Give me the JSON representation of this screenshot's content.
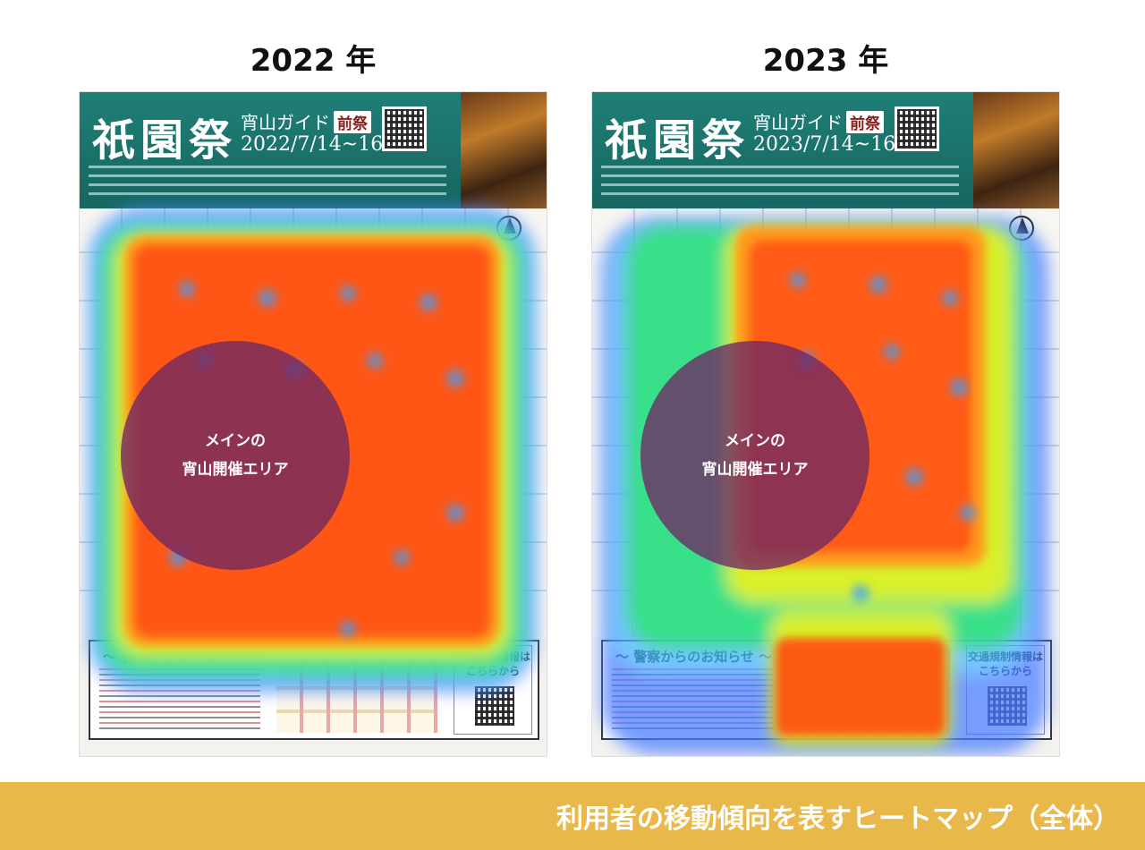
{
  "panels": [
    {
      "year_label": "2022 年",
      "header_title": "祇園祭",
      "header_sub": "宵山ガイド",
      "header_badge": "前祭",
      "header_date": "2022/7/14~16",
      "circle_line1": "メインの",
      "circle_line2": "宵山開催エリア",
      "notice_title": "～ 警察からのお知らせ ～",
      "traffic_title": "交通規制情報はこちらから"
    },
    {
      "year_label": "2023 年",
      "header_title": "祇園祭",
      "header_sub": "宵山ガイド",
      "header_badge": "前祭",
      "header_date": "2023/7/14~16",
      "circle_line1": "メインの",
      "circle_line2": "宵山開催エリア",
      "notice_title": "～ 警察からのお知らせ ～",
      "traffic_title": "交通規制情報はこちらから"
    }
  ],
  "banner": {
    "title": "利用者の移動傾向を表すヒートマップ（全体）"
  },
  "colors": {
    "header_teal": "#1f7f77",
    "banner_gold": "#e9b84a",
    "circle_purple": "#6e2864"
  },
  "icons": [
    "qr-code-icon",
    "north-arrow-icon"
  ]
}
